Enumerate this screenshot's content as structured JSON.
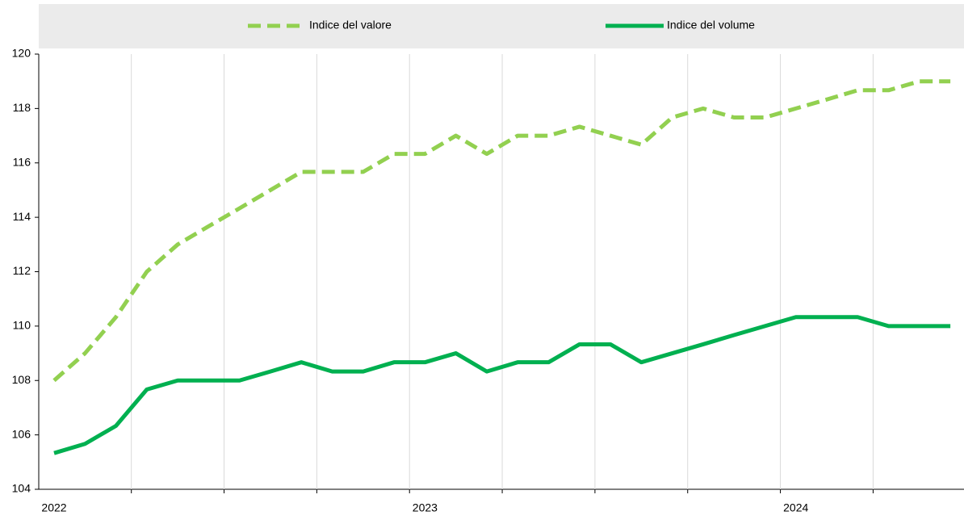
{
  "chart_data": {
    "type": "line",
    "categories": [
      "2022",
      null,
      null,
      null,
      null,
      null,
      null,
      null,
      null,
      null,
      null,
      null,
      "2023",
      null,
      null,
      null,
      null,
      null,
      null,
      null,
      null,
      null,
      null,
      null,
      "2024",
      null,
      null,
      null,
      null,
      null
    ],
    "series": [
      {
        "name": "Indice del valore",
        "color": "#92d050",
        "dashed": true,
        "values": [
          108,
          109,
          110.33,
          112,
          113,
          113.67,
          114.33,
          115,
          115.67,
          115.67,
          115.67,
          116.33,
          116.33,
          117,
          116.33,
          117,
          117,
          117.33,
          117,
          116.67,
          117.67,
          118,
          117.67,
          117.67,
          118,
          118.33,
          118.67,
          118.67,
          119,
          119
        ]
      },
      {
        "name": "Indice del volume",
        "color": "#00b050",
        "dashed": false,
        "values": [
          105.33,
          105.67,
          106.33,
          107.67,
          108,
          108,
          108,
          108.33,
          108.67,
          108.33,
          108.33,
          108.67,
          108.67,
          109,
          108.33,
          108.67,
          108.67,
          109.33,
          109.33,
          108.67,
          109,
          109.33,
          109.67,
          110,
          110.33,
          110.33,
          110.33,
          110,
          110,
          110
        ]
      }
    ],
    "ylim": [
      104,
      120
    ],
    "yticks": [
      104,
      106,
      108,
      110,
      112,
      114,
      116,
      118,
      120
    ],
    "legend": "top",
    "grid": "x"
  }
}
